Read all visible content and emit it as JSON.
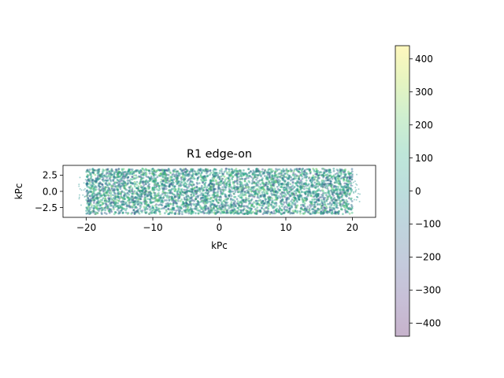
{
  "chart_data": {
    "type": "scatter",
    "title": "R1 edge-on",
    "xlabel": "kPc",
    "ylabel": "kPc",
    "xlim": [
      -23.5,
      23.5
    ],
    "ylim": [
      -4,
      4
    ],
    "xticks": [
      -20,
      -10,
      0,
      10,
      20
    ],
    "xtick_labels": [
      "−20",
      "−10",
      "0",
      "10",
      "20"
    ],
    "yticks": [
      -2.5,
      0.0,
      2.5
    ],
    "ytick_labels": [
      "−2.5",
      "0.0",
      "2.5"
    ],
    "point_cloud": {
      "x_range": [
        -20,
        20
      ],
      "y_range": [
        -3.5,
        3.5
      ],
      "alpha": 0.3
    },
    "colorbar": {
      "range": [
        -440,
        440
      ],
      "ticks": [
        400,
        300,
        200,
        100,
        0,
        -100,
        -200,
        -300,
        -400
      ],
      "tick_labels": [
        "400",
        "300",
        "200",
        "100",
        "0",
        "−100",
        "−200",
        "−300",
        "−400"
      ],
      "colormap": "viridis",
      "alpha": 0.3
    }
  }
}
